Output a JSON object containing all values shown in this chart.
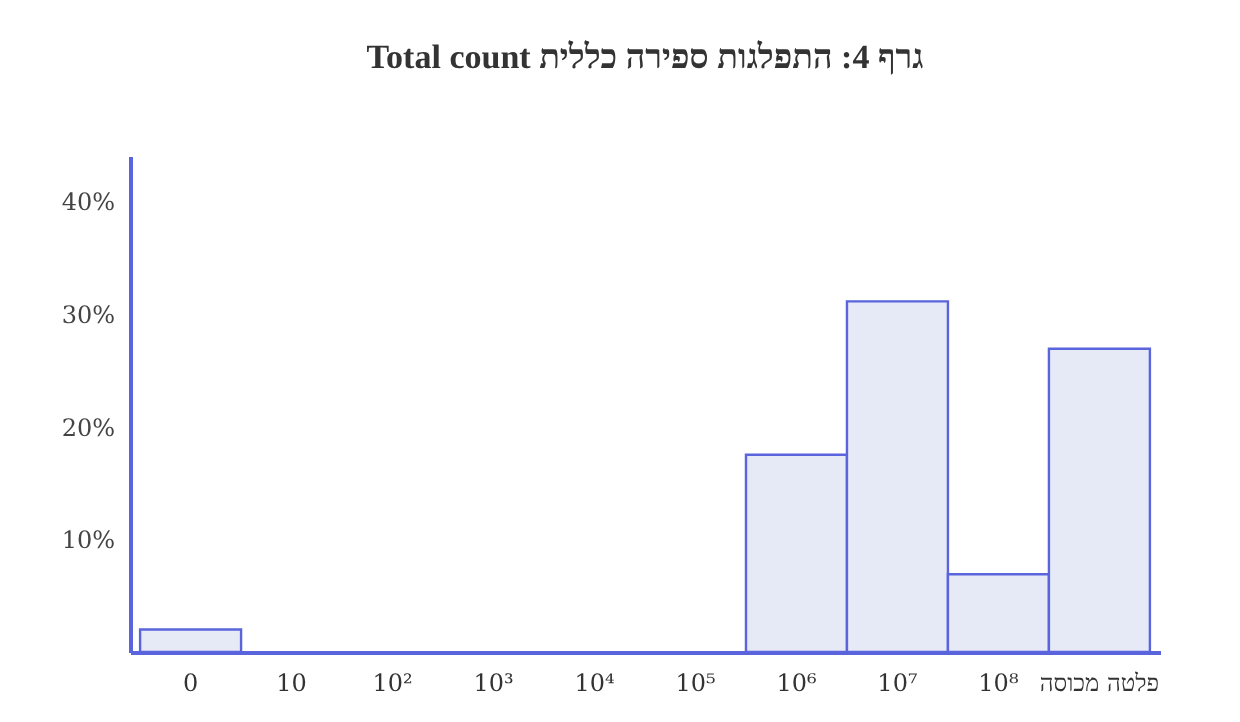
{
  "chart_data": {
    "type": "bar",
    "title": "Total count    גרף 4: התפלגות ספירה כללית",
    "categories": [
      "0",
      "10",
      "10²",
      "10³",
      "10⁴",
      "10⁵",
      "10⁶",
      "10⁷",
      "10⁸",
      "פלטה מכוסה"
    ],
    "values": [
      2.0,
      0,
      0,
      0,
      0,
      0,
      17.5,
      31.1,
      6.9,
      26.9
    ],
    "color": "#e6eaf6",
    "ylim": [
      0,
      44
    ],
    "yticks": [
      {
        "value": 10,
        "label": "10%"
      },
      {
        "value": 20,
        "label": "20%"
      },
      {
        "value": 30,
        "label": "30%"
      },
      {
        "value": 40,
        "label": "40%"
      }
    ],
    "grid": false
  }
}
